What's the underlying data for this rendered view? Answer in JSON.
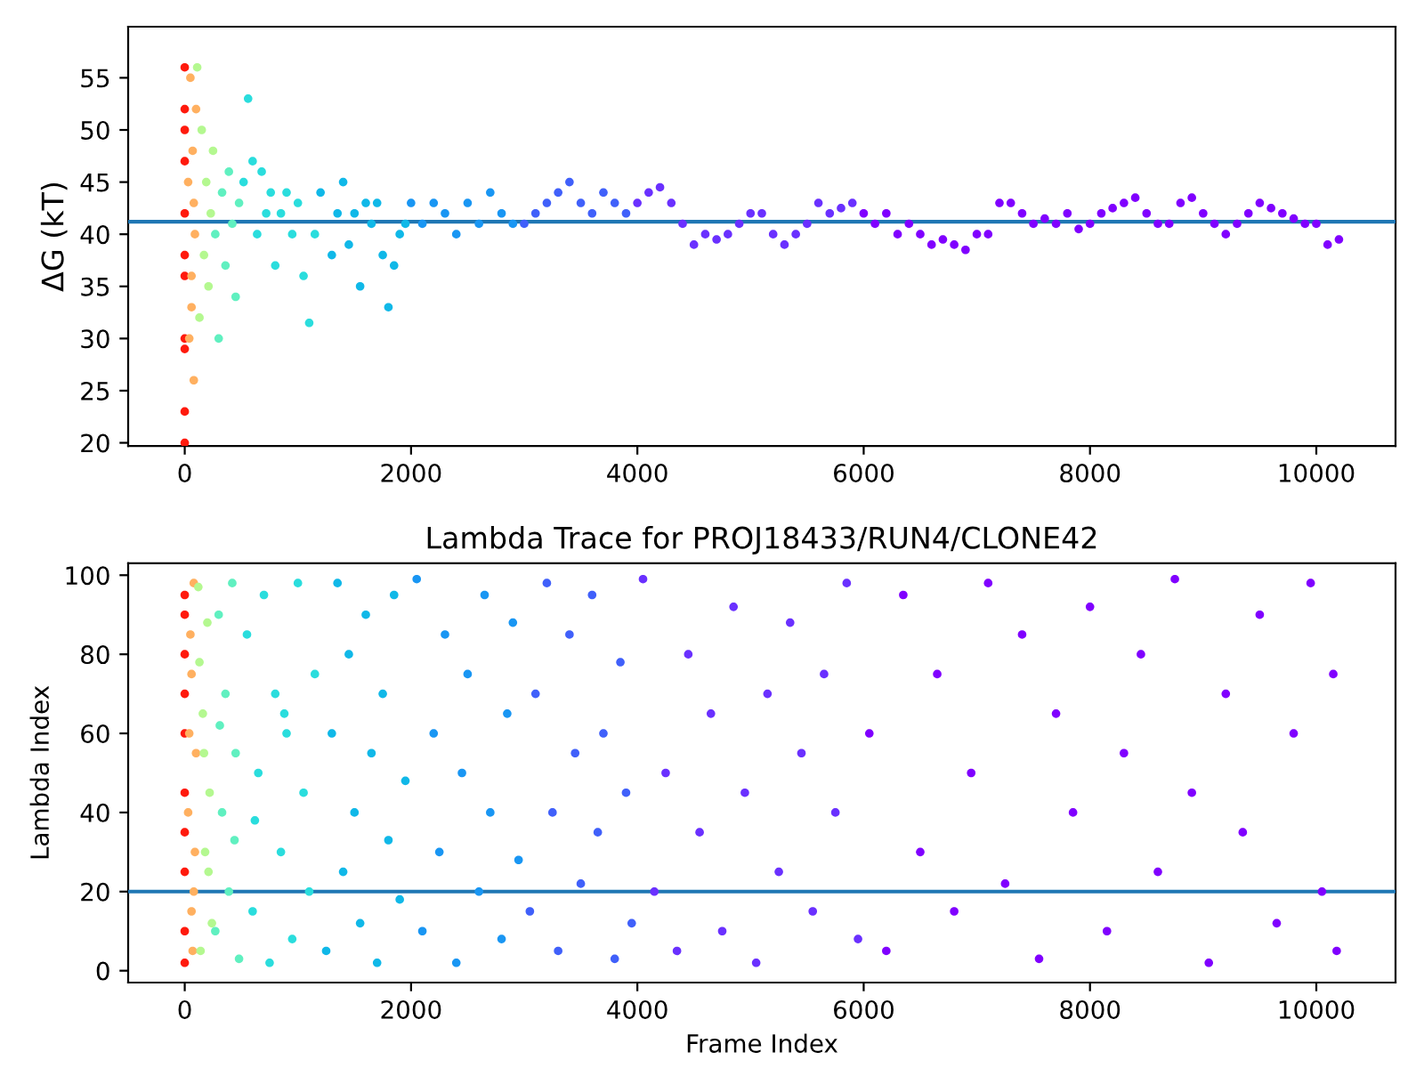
{
  "chart_data": [
    {
      "type": "scatter",
      "ylabel": "ΔG (kT)",
      "xlim": [
        -500,
        10700
      ],
      "ylim": [
        19.7,
        59.9
      ],
      "xticks": [
        0,
        2000,
        4000,
        6000,
        8000,
        10000
      ],
      "yticks": [
        20,
        25,
        30,
        35,
        40,
        45,
        50,
        55
      ],
      "marker": "circle",
      "grid": false,
      "legend": false,
      "ref_lines": [
        {
          "axis": "y",
          "value": 41.2,
          "color": "#1f77b4"
        }
      ],
      "series": [
        {
          "color": "#ff1a0d",
          "x": [
            0,
            0,
            0,
            0,
            0,
            0,
            0,
            0,
            0,
            0,
            0
          ],
          "values": [
            20,
            30,
            50,
            56,
            36,
            47,
            38,
            23,
            52,
            29,
            42
          ]
        },
        {
          "color": "#ffb060",
          "x": [
            30,
            40,
            50,
            60,
            70,
            80,
            90,
            100,
            60,
            80
          ],
          "values": [
            45,
            30,
            55,
            33,
            48,
            26,
            40,
            52,
            36,
            43
          ]
        },
        {
          "color": "#b4f890",
          "x": [
            110,
            130,
            150,
            170,
            190,
            210,
            230,
            250
          ],
          "values": [
            56,
            32,
            50,
            38,
            45,
            35,
            42,
            48
          ]
        },
        {
          "color": "#60f0c0",
          "x": [
            270,
            300,
            330,
            360,
            390,
            420,
            450,
            480
          ],
          "values": [
            40,
            30,
            44,
            37,
            46,
            41,
            34,
            43
          ]
        },
        {
          "color": "#2adddd",
          "x": [
            520,
            560,
            600,
            640,
            680,
            720,
            760,
            800,
            850,
            900,
            950,
            1000,
            1050,
            1100,
            1150
          ],
          "values": [
            45,
            53,
            47,
            40,
            46,
            42,
            44,
            37,
            42,
            44,
            40,
            43,
            36,
            31.5,
            40
          ]
        },
        {
          "color": "#10b8e8",
          "x": [
            1200,
            1300,
            1350,
            1400,
            1450,
            1500,
            1550,
            1600,
            1650,
            1700,
            1750,
            1800,
            1850,
            1900,
            1950
          ],
          "values": [
            44,
            38,
            42,
            45,
            39,
            42,
            35,
            43,
            41,
            43,
            38,
            33,
            37,
            40,
            41
          ]
        },
        {
          "color": "#1996f3",
          "x": [
            2000,
            2100,
            2200,
            2300,
            2400,
            2500,
            2600,
            2700,
            2800,
            2900
          ],
          "values": [
            43,
            41,
            43,
            42,
            40,
            43,
            41,
            44,
            42,
            41
          ]
        },
        {
          "color": "#4060fa",
          "x": [
            3000,
            3100,
            3200,
            3300,
            3400,
            3500,
            3600,
            3700,
            3800,
            3900
          ],
          "values": [
            41,
            42,
            43,
            44,
            45,
            43,
            42,
            44,
            43,
            42
          ]
        },
        {
          "color": "#6a30ff",
          "x": [
            4000,
            4100,
            4200,
            4300,
            4400,
            4500,
            4600,
            4700,
            4800,
            4900,
            5000,
            5100,
            5200,
            5300,
            5400,
            5500,
            5600,
            5700,
            5800,
            5900
          ],
          "values": [
            43,
            44,
            44.5,
            43,
            41,
            39,
            40,
            39.5,
            40,
            41,
            42,
            42,
            40,
            39,
            40,
            41,
            43,
            42,
            42.5,
            43
          ]
        },
        {
          "color": "#8000ff",
          "x": [
            6000,
            6100,
            6200,
            6300,
            6400,
            6500,
            6600,
            6700,
            6800,
            6900,
            7000,
            7100,
            7200,
            7300,
            7400,
            7500,
            7600,
            7700,
            7800,
            7900,
            8000,
            8100,
            8200,
            8300,
            8400,
            8500,
            8600,
            8700,
            8800,
            8900,
            9000,
            9100,
            9200,
            9300,
            9400,
            9500,
            9600,
            9700,
            9800,
            9900,
            10000,
            10100,
            10200
          ],
          "values": [
            42,
            41,
            42,
            40,
            41,
            40,
            39,
            39.5,
            39,
            38.5,
            40,
            40,
            43,
            43,
            42,
            41,
            41.5,
            41,
            42,
            40.5,
            41,
            42,
            42.5,
            43,
            43.5,
            42,
            41,
            41,
            43,
            43.5,
            42,
            41,
            40,
            41,
            42,
            43,
            42.5,
            42,
            41.5,
            41,
            41,
            39,
            39.5
          ]
        }
      ]
    },
    {
      "type": "scatter",
      "title": "Lambda Trace for PROJ18433/RUN4/CLONE42",
      "xlabel": "Frame Index",
      "ylabel": "Lambda Index",
      "xlim": [
        -500,
        10700
      ],
      "ylim": [
        -3,
        103
      ],
      "xticks": [
        0,
        2000,
        4000,
        6000,
        8000,
        10000
      ],
      "yticks": [
        0,
        20,
        40,
        60,
        80,
        100
      ],
      "marker": "circle",
      "grid": false,
      "legend": false,
      "ref_lines": [
        {
          "axis": "y",
          "value": 20,
          "color": "#1f77b4"
        }
      ],
      "series": [
        {
          "color": "#ff1a0d",
          "x": [
            0,
            0,
            0,
            0,
            0,
            0,
            0,
            0,
            0,
            0
          ],
          "values": [
            2,
            25,
            45,
            60,
            80,
            95,
            35,
            70,
            10,
            90
          ]
        },
        {
          "color": "#ffb060",
          "x": [
            30,
            40,
            50,
            60,
            70,
            80,
            90,
            100,
            60,
            80
          ],
          "values": [
            40,
            60,
            85,
            15,
            5,
            98,
            30,
            55,
            75,
            20
          ]
        },
        {
          "color": "#b4f890",
          "x": [
            120,
            140,
            160,
            180,
            200,
            220,
            240,
            130,
            170,
            210
          ],
          "values": [
            97,
            5,
            65,
            30,
            88,
            45,
            12,
            78,
            55,
            25
          ]
        },
        {
          "color": "#60f0c0",
          "x": [
            270,
            300,
            330,
            360,
            390,
            420,
            450,
            480,
            310,
            440
          ],
          "values": [
            10,
            90,
            40,
            70,
            20,
            98,
            55,
            3,
            62,
            33
          ]
        },
        {
          "color": "#2adddd",
          "x": [
            550,
            600,
            650,
            700,
            750,
            800,
            850,
            900,
            950,
            1000,
            1050,
            1100,
            1150,
            620,
            880
          ],
          "values": [
            85,
            15,
            50,
            95,
            2,
            70,
            30,
            60,
            8,
            98,
            45,
            20,
            75,
            38,
            65
          ]
        },
        {
          "color": "#10b8e8",
          "x": [
            1250,
            1300,
            1350,
            1400,
            1450,
            1500,
            1550,
            1600,
            1650,
            1700,
            1750,
            1800,
            1850,
            1900,
            1950
          ],
          "values": [
            5,
            60,
            98,
            25,
            80,
            40,
            12,
            90,
            55,
            2,
            70,
            33,
            95,
            18,
            48
          ]
        },
        {
          "color": "#1996f3",
          "x": [
            2050,
            2100,
            2200,
            2250,
            2300,
            2400,
            2450,
            2500,
            2600,
            2650,
            2700,
            2800,
            2850,
            2900,
            2950
          ],
          "values": [
            99,
            10,
            60,
            30,
            85,
            2,
            50,
            75,
            20,
            95,
            40,
            8,
            65,
            88,
            28
          ]
        },
        {
          "color": "#4060fa",
          "x": [
            3050,
            3100,
            3200,
            3250,
            3300,
            3400,
            3450,
            3500,
            3600,
            3650,
            3700,
            3800,
            3850,
            3900,
            3950
          ],
          "values": [
            15,
            70,
            98,
            40,
            5,
            85,
            55,
            22,
            95,
            35,
            60,
            3,
            78,
            45,
            12
          ]
        },
        {
          "color": "#6a30ff",
          "x": [
            4050,
            4150,
            4250,
            4350,
            4450,
            4550,
            4650,
            4750,
            4850,
            4950,
            5050,
            5150,
            5250,
            5350,
            5450,
            5550,
            5650,
            5750,
            5850,
            5950
          ],
          "values": [
            99,
            20,
            50,
            5,
            80,
            35,
            65,
            10,
            92,
            45,
            2,
            70,
            25,
            88,
            55,
            15,
            75,
            40,
            98,
            8
          ]
        },
        {
          "color": "#8000ff",
          "x": [
            6050,
            6200,
            6350,
            6500,
            6650,
            6800,
            6950,
            7100,
            7250,
            7400,
            7550,
            7700,
            7850,
            8000,
            8150,
            8300,
            8450,
            8600,
            8750,
            8900,
            9050,
            9200,
            9350,
            9500,
            9650,
            9800,
            9950,
            10050,
            10150,
            10180
          ],
          "values": [
            60,
            5,
            95,
            30,
            75,
            15,
            50,
            98,
            22,
            85,
            3,
            65,
            40,
            92,
            10,
            55,
            80,
            25,
            99,
            45,
            2,
            70,
            35,
            90,
            12,
            60,
            98,
            20,
            75,
            5
          ]
        }
      ]
    }
  ]
}
